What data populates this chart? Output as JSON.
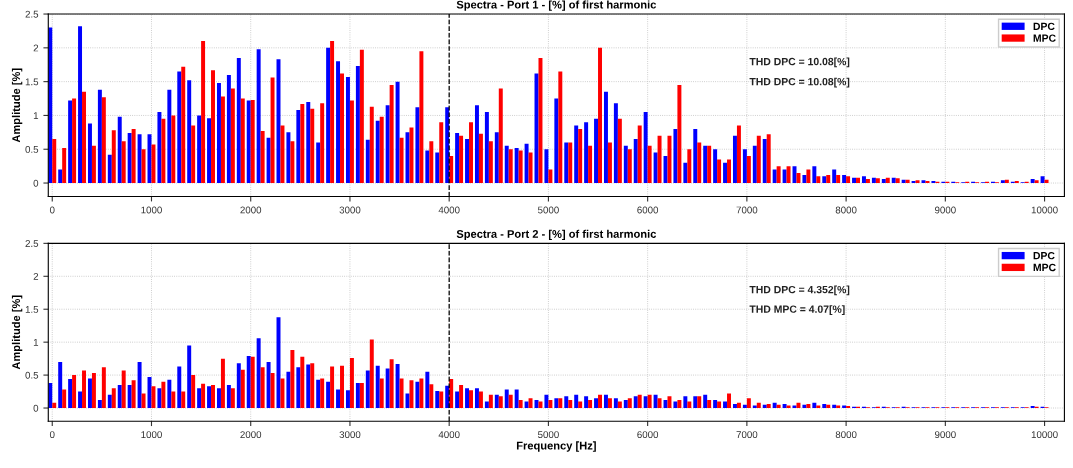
{
  "chart_data": [
    {
      "type": "bar",
      "title": "Spectra - Port 1 - [%] of first harmonic",
      "ylabel": "Amplitude [%]",
      "x": [
        0,
        100,
        200,
        300,
        400,
        500,
        600,
        700,
        800,
        900,
        1000,
        1100,
        1200,
        1300,
        1400,
        1500,
        1600,
        1700,
        1800,
        1900,
        2000,
        2100,
        2200,
        2300,
        2400,
        2500,
        2600,
        2700,
        2800,
        2900,
        3000,
        3100,
        3200,
        3300,
        3400,
        3500,
        3600,
        3700,
        3800,
        3900,
        4000,
        4100,
        4200,
        4300,
        4400,
        4500,
        4600,
        4700,
        4800,
        4900,
        5000,
        5100,
        5200,
        5300,
        5400,
        5500,
        5600,
        5700,
        5800,
        5900,
        6000,
        6100,
        6200,
        6300,
        6400,
        6500,
        6600,
        6700,
        6800,
        6900,
        7000,
        7100,
        7200,
        7300,
        7400,
        7500,
        7600,
        7700,
        7800,
        7900,
        8000,
        8100,
        8200,
        8300,
        8400,
        8500,
        8600,
        8700,
        8800,
        8900,
        9000,
        9100,
        9200,
        9300,
        9400,
        9500,
        9600,
        9700,
        9800,
        9900,
        10000
      ],
      "series": [
        {
          "name": "DPC",
          "color": "#0000ff",
          "values": [
            2.3,
            0.2,
            1.22,
            2.32,
            0.88,
            1.38,
            0.42,
            0.98,
            0.74,
            0.72,
            0.72,
            1.05,
            1.38,
            1.65,
            1.52,
            1.0,
            0.96,
            1.48,
            1.6,
            1.85,
            1.22,
            1.98,
            0.67,
            1.83,
            0.75,
            1.08,
            1.2,
            0.6,
            2.0,
            1.8,
            1.57,
            1.73,
            0.64,
            0.92,
            1.15,
            1.5,
            0.75,
            1.12,
            0.48,
            0.45,
            1.12,
            0.74,
            0.65,
            1.15,
            1.05,
            0.75,
            0.55,
            0.52,
            0.58,
            1.62,
            0.5,
            1.25,
            0.6,
            0.85,
            0.9,
            0.95,
            1.35,
            1.18,
            0.55,
            0.65,
            1.05,
            0.45,
            0.4,
            0.8,
            0.3,
            0.8,
            0.55,
            0.5,
            0.3,
            0.7,
            0.5,
            0.55,
            0.65,
            0.2,
            0.2,
            0.25,
            0.12,
            0.25,
            0.1,
            0.2,
            0.12,
            0.08,
            0.1,
            0.08,
            0.06,
            0.08,
            0.05,
            0.03,
            0.04,
            0.03,
            0.02,
            0.02,
            0.01,
            0.02,
            0.01,
            0.02,
            0.04,
            0.02,
            0.01,
            0.06,
            0.1
          ]
        },
        {
          "name": "MPC",
          "color": "#ff0000",
          "values": [
            0.65,
            0.52,
            1.25,
            1.35,
            0.55,
            1.27,
            0.78,
            0.62,
            0.8,
            0.5,
            0.57,
            0.95,
            1.0,
            1.72,
            0.85,
            2.1,
            1.67,
            1.28,
            1.4,
            1.25,
            1.23,
            0.77,
            1.56,
            0.85,
            0.62,
            1.17,
            1.1,
            1.18,
            2.1,
            1.62,
            1.22,
            1.97,
            1.13,
            0.98,
            1.45,
            0.67,
            0.82,
            1.95,
            0.62,
            0.9,
            0.4,
            0.7,
            0.9,
            0.73,
            0.62,
            1.4,
            0.5,
            0.48,
            0.45,
            1.85,
            0.2,
            1.65,
            0.6,
            0.8,
            0.55,
            2.0,
            0.6,
            0.95,
            0.5,
            0.85,
            0.55,
            0.7,
            0.7,
            1.45,
            0.5,
            0.6,
            0.55,
            0.35,
            0.35,
            0.85,
            0.4,
            0.7,
            0.72,
            0.25,
            0.25,
            0.15,
            0.2,
            0.1,
            0.12,
            0.12,
            0.1,
            0.08,
            0.06,
            0.07,
            0.08,
            0.07,
            0.05,
            0.04,
            0.03,
            0.02,
            0.02,
            0.01,
            0.02,
            0.01,
            0.02,
            0.01,
            0.05,
            0.03,
            0.02,
            0.04,
            0.05
          ]
        }
      ],
      "xlim": [
        -40,
        10200
      ],
      "ylim": [
        -0.2,
        2.5
      ],
      "xticks": [
        0,
        1000,
        2000,
        3000,
        4000,
        5000,
        6000,
        7000,
        8000,
        9000,
        10000
      ],
      "yticks": [
        0,
        0.5,
        1,
        1.5,
        2,
        2.5
      ],
      "ref_lines": [
        {
          "axis": "x",
          "value": 4000,
          "color": "#000000",
          "line_style": "dashed"
        }
      ],
      "annotations": [
        "THD DPC = 10.08[%]",
        "THD DPC = 10.08[%]"
      ],
      "grid": true,
      "legend": "top right"
    },
    {
      "type": "bar",
      "title": "Spectra - Port 2 - [%] of first harmonic",
      "ylabel": "Amplitude [%]",
      "xlabel": "Frequency [Hz]",
      "x": [
        0,
        100,
        200,
        300,
        400,
        500,
        600,
        700,
        800,
        900,
        1000,
        1100,
        1200,
        1300,
        1400,
        1500,
        1600,
        1700,
        1800,
        1900,
        2000,
        2100,
        2200,
        2300,
        2400,
        2500,
        2600,
        2700,
        2800,
        2900,
        3000,
        3100,
        3200,
        3300,
        3400,
        3500,
        3600,
        3700,
        3800,
        3900,
        4000,
        4100,
        4200,
        4300,
        4400,
        4500,
        4600,
        4700,
        4800,
        4900,
        5000,
        5100,
        5200,
        5300,
        5400,
        5500,
        5600,
        5700,
        5800,
        5900,
        6000,
        6100,
        6200,
        6300,
        6400,
        6500,
        6600,
        6700,
        6800,
        6900,
        7000,
        7100,
        7200,
        7300,
        7400,
        7500,
        7600,
        7700,
        7800,
        7900,
        8000,
        8100,
        8200,
        8300,
        8400,
        8500,
        8600,
        8700,
        8800,
        8900,
        9000,
        9100,
        9200,
        9300,
        9400,
        9500,
        9600,
        9700,
        9800,
        9900,
        10000
      ],
      "series": [
        {
          "name": "DPC",
          "color": "#0000ff",
          "values": [
            0.38,
            0.7,
            0.44,
            0.25,
            0.45,
            0.12,
            0.2,
            0.35,
            0.35,
            0.7,
            0.47,
            0.3,
            0.43,
            0.63,
            0.95,
            0.3,
            0.33,
            0.3,
            0.35,
            0.68,
            0.79,
            1.06,
            0.7,
            1.38,
            0.55,
            0.62,
            0.66,
            0.43,
            0.4,
            0.28,
            0.27,
            0.38,
            0.57,
            0.64,
            0.6,
            0.67,
            0.22,
            0.4,
            0.55,
            0.26,
            0.34,
            0.25,
            0.3,
            0.3,
            0.1,
            0.2,
            0.28,
            0.28,
            0.1,
            0.12,
            0.2,
            0.15,
            0.18,
            0.2,
            0.18,
            0.15,
            0.2,
            0.15,
            0.12,
            0.18,
            0.18,
            0.2,
            0.12,
            0.1,
            0.18,
            0.18,
            0.2,
            0.12,
            0.1,
            0.06,
            0.05,
            0.04,
            0.05,
            0.08,
            0.06,
            0.04,
            0.05,
            0.08,
            0.06,
            0.05,
            0.04,
            0.02,
            0.02,
            0.01,
            0.02,
            0.01,
            0.02,
            0.01,
            0.01,
            0.01,
            0.01,
            0.01,
            0.01,
            0.01,
            0.01,
            0.01,
            0.01,
            0.01,
            0.01,
            0.03,
            0.02
          ]
        },
        {
          "name": "MPC",
          "color": "#ff0000",
          "values": [
            0.08,
            0.28,
            0.5,
            0.57,
            0.53,
            0.62,
            0.3,
            0.57,
            0.42,
            0.22,
            0.33,
            0.4,
            0.25,
            0.25,
            0.5,
            0.37,
            0.35,
            0.75,
            0.3,
            0.58,
            0.78,
            0.62,
            0.53,
            0.45,
            0.88,
            0.78,
            0.68,
            0.45,
            0.63,
            0.64,
            0.76,
            0.38,
            1.04,
            0.45,
            0.74,
            0.45,
            0.42,
            0.45,
            0.36,
            0.25,
            0.44,
            0.35,
            0.27,
            0.25,
            0.2,
            0.18,
            0.2,
            0.12,
            0.15,
            0.1,
            0.12,
            0.15,
            0.12,
            0.1,
            0.12,
            0.2,
            0.15,
            0.1,
            0.15,
            0.2,
            0.2,
            0.15,
            0.18,
            0.12,
            0.1,
            0.18,
            0.12,
            0.1,
            0.22,
            0.08,
            0.15,
            0.08,
            0.06,
            0.05,
            0.04,
            0.08,
            0.06,
            0.04,
            0.05,
            0.04,
            0.03,
            0.02,
            0.01,
            0.02,
            0.01,
            0.01,
            0.01,
            0.01,
            0.01,
            0.01,
            0.01,
            0.01,
            0.01,
            0.01,
            0.01,
            0.01,
            0.01,
            0.01,
            0.01,
            0.02,
            0.01
          ]
        }
      ],
      "xlim": [
        -40,
        10200
      ],
      "ylim": [
        -0.2,
        2.5
      ],
      "xticks": [
        0,
        1000,
        2000,
        3000,
        4000,
        5000,
        6000,
        7000,
        8000,
        9000,
        10000
      ],
      "yticks": [
        0,
        0.5,
        1,
        1.5,
        2,
        2.5
      ],
      "ref_lines": [
        {
          "axis": "x",
          "value": 4000,
          "color": "#000000",
          "line_style": "dashed"
        }
      ],
      "annotations": [
        "THD DPC = 4.352[%]",
        "THD MPC = 4.07[%]"
      ],
      "grid": true,
      "legend": "top right"
    }
  ]
}
